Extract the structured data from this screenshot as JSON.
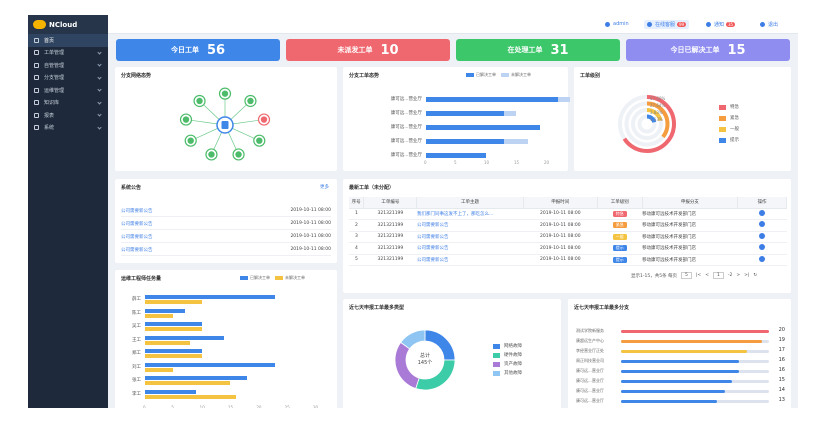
{
  "app": {
    "name": "NCloud"
  },
  "sidebar": {
    "items": [
      {
        "label": "首页",
        "active": true
      },
      {
        "label": "工单管理",
        "chevron": true
      },
      {
        "label": "自管管理",
        "chevron": true
      },
      {
        "label": "分支管理",
        "chevron": true
      },
      {
        "label": "运维管理",
        "chevron": true
      },
      {
        "label": "知识库",
        "chevron": true
      },
      {
        "label": "报表",
        "chevron": true
      },
      {
        "label": "系统",
        "chevron": true
      }
    ]
  },
  "topbar": {
    "user": "admin",
    "online": "在线客服",
    "online_count": "99",
    "notify": "通知",
    "notify_count": "35",
    "logout": "退出"
  },
  "stats": [
    {
      "label": "今日工单",
      "value": "56",
      "color": "#3e86e8"
    },
    {
      "label": "未派发工单",
      "value": "10",
      "color": "#f0686f"
    },
    {
      "label": "在处理工单",
      "value": "31",
      "color": "#3cc76a"
    },
    {
      "label": "今日已解决工单",
      "value": "15",
      "color": "#8f8df0"
    }
  ],
  "network": {
    "title": "分支网络态势"
  },
  "branch_status": {
    "title": "分支工单态势",
    "legend": [
      "已解决工单",
      "未解决工单"
    ],
    "colors": [
      "#3e86e8",
      "#bcd3f3"
    ],
    "categories": [
      "康可远...营业厅",
      "康可远...营业厅",
      "康可远...营业厅",
      "康可远...营业厅",
      "康可远...营业厅"
    ],
    "resolved": [
      22,
      13,
      19,
      13,
      10
    ],
    "unresolved": [
      24,
      15,
      19,
      17,
      10
    ],
    "ticks": [
      "0",
      "5",
      "10",
      "15",
      "20",
      "25"
    ],
    "max": 25
  },
  "levels": {
    "title": "工单级别",
    "items": [
      {
        "label": "特急",
        "pct": "67.60%",
        "value": 0.676,
        "color": "#f0686f"
      },
      {
        "label": "紧急",
        "pct": "27.64%",
        "value": 0.2764,
        "color": "#f59d3e"
      },
      {
        "label": "一般",
        "pct": "3.83%",
        "value": 0.0383,
        "color": "#f5c342"
      },
      {
        "label": "提示",
        "pct": "1.53%",
        "value": 0.0153,
        "color": "#3e86e8"
      }
    ]
  },
  "notices": {
    "title": "系统公告",
    "more": "更多",
    "items": [
      {
        "title": "公司需要新公告",
        "time": "2019-10-11 08:00"
      },
      {
        "title": "公司需要新公告",
        "time": "2019-10-11 08:00"
      },
      {
        "title": "公司需要新公告",
        "time": "2019-10-11 08:00"
      },
      {
        "title": "公司需要新公告",
        "time": "2019-10-11 08:00"
      }
    ]
  },
  "latest": {
    "title": "最新工单（未分配）",
    "headers": [
      "序号",
      "工单编号",
      "工单主题",
      "申报时间",
      "工单级别",
      "申报分支",
      "操作"
    ],
    "rows": [
      {
        "no": "1",
        "id": "321321199",
        "topic": "我们那门同事这发不上了，那吃怎么...",
        "time": "2019-10-11 08:00",
        "level": "特急",
        "level_color": "#f0686f",
        "branch": "移动康可远技术开发部门店"
      },
      {
        "no": "2",
        "id": "321321199",
        "topic": "公司需要新公告",
        "time": "2019-10-11 08:00",
        "level": "紧急",
        "level_color": "#f59d3e",
        "branch": "移动康可远技术开发部门店"
      },
      {
        "no": "3",
        "id": "321321199",
        "topic": "公司需要新公告",
        "time": "2019-10-11 08:00",
        "level": "一般",
        "level_color": "#f5c342",
        "branch": "移动康可远技术开发部门店"
      },
      {
        "no": "4",
        "id": "321321199",
        "topic": "公司需要新公告",
        "time": "2019-10-11 08:00",
        "level": "提示",
        "level_color": "#3e86e8",
        "branch": "移动康可远技术开发部门店"
      },
      {
        "no": "5",
        "id": "321321199",
        "topic": "公司需要新公告",
        "time": "2019-10-11 08:00",
        "level": "提示",
        "level_color": "#3e86e8",
        "branch": "移动康可远技术开发部门店"
      }
    ],
    "pager": {
      "info": "显示1-15，共5条 每页",
      "size": "5",
      "page": "1",
      "total": "-2"
    }
  },
  "engineer": {
    "title": "运维工程师任务量",
    "legend": [
      "已解决工单",
      "未解决工单"
    ],
    "colors": [
      "#3e86e8",
      "#f5c342"
    ],
    "names": [
      "薛工",
      "陈工",
      "吴工",
      "王工",
      "郑工",
      "刘工",
      "张工",
      "李工"
    ],
    "resolved": [
      23,
      7,
      10,
      14,
      10,
      23,
      18,
      9
    ],
    "unresolved": [
      10,
      5,
      10,
      8,
      10,
      5,
      15,
      16
    ],
    "ticks": [
      "0",
      "5",
      "10",
      "15",
      "20",
      "25",
      "30"
    ],
    "max": 30
  },
  "types": {
    "title": "近七天申报工单最多类型",
    "center_label": "总计",
    "center_value": "145个",
    "items": [
      {
        "label": "网络故障",
        "value": 25,
        "color": "#3e86e8"
      },
      {
        "label": "硬件故障",
        "value": 30,
        "color": "#3ccca8"
      },
      {
        "label": "资产故障",
        "value": 30,
        "color": "#a97ad6"
      },
      {
        "label": "其他故障",
        "value": 15,
        "color": "#8ec5f3"
      }
    ]
  },
  "ranking": {
    "title": "近七天申报工单最多分支",
    "max": 20,
    "items": [
      {
        "label": "测试学院新服务",
        "value": "20",
        "num": 20,
        "color": "#f0686f"
      },
      {
        "label": "康超远生产中心",
        "value": "19",
        "num": 19,
        "color": "#f59d3e"
      },
      {
        "label": "李经营业厅正处",
        "value": "17",
        "num": 17,
        "color": "#f5c342"
      },
      {
        "label": "周正科技营业司",
        "value": "16",
        "num": 16,
        "color": "#3e86e8"
      },
      {
        "label": "康可远...营业厅",
        "value": "16",
        "num": 16,
        "color": "#3e86e8"
      },
      {
        "label": "康可远...营业厅",
        "value": "15",
        "num": 15,
        "color": "#3e86e8"
      },
      {
        "label": "康可远...营业厅",
        "value": "14",
        "num": 14,
        "color": "#3e86e8"
      },
      {
        "label": "康可远...营业厅",
        "value": "13",
        "num": 13,
        "color": "#3e86e8"
      }
    ]
  }
}
